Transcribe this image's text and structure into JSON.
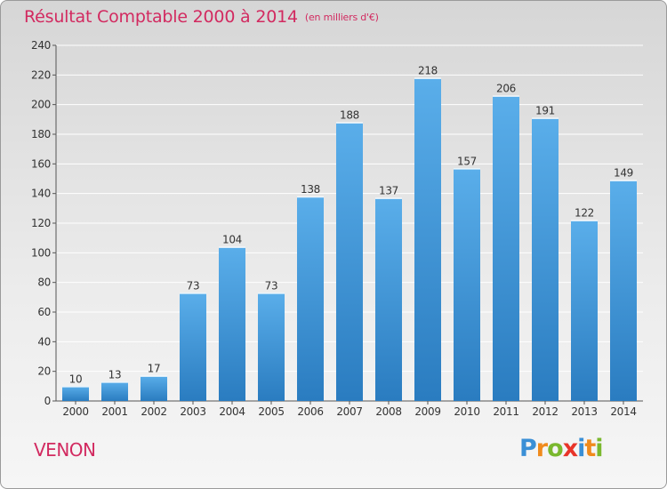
{
  "header": {
    "title": "Résultat Comptable 2000 à 2014",
    "unit": "(en milliers d'€)"
  },
  "footer": {
    "commune": "VENON",
    "logo_letters": [
      "P",
      "r",
      "o",
      "x",
      "i",
      "t",
      "i"
    ],
    "logo_colors": [
      "#3a8fd6",
      "#f08a1c",
      "#7ab82e",
      "#e8352a",
      "#3a8fd6",
      "#f08a1c",
      "#7ab82e"
    ]
  },
  "colors": {
    "title": "#d22a60",
    "bar_top": "#5aaeea",
    "bar_bottom": "#2a7cc0",
    "grid": "#ffffff"
  },
  "chart_data": {
    "type": "bar",
    "categories": [
      "2000",
      "2001",
      "2002",
      "2003",
      "2004",
      "2005",
      "2006",
      "2007",
      "2008",
      "2009",
      "2010",
      "2011",
      "2012",
      "2013",
      "2014"
    ],
    "values": [
      10,
      13,
      17,
      73,
      104,
      73,
      138,
      188,
      137,
      218,
      157,
      206,
      191,
      122,
      149
    ],
    "ylim": [
      0,
      240
    ],
    "yticks": [
      0,
      20,
      40,
      60,
      80,
      100,
      120,
      140,
      160,
      180,
      200,
      220,
      240
    ],
    "grid": true
  }
}
